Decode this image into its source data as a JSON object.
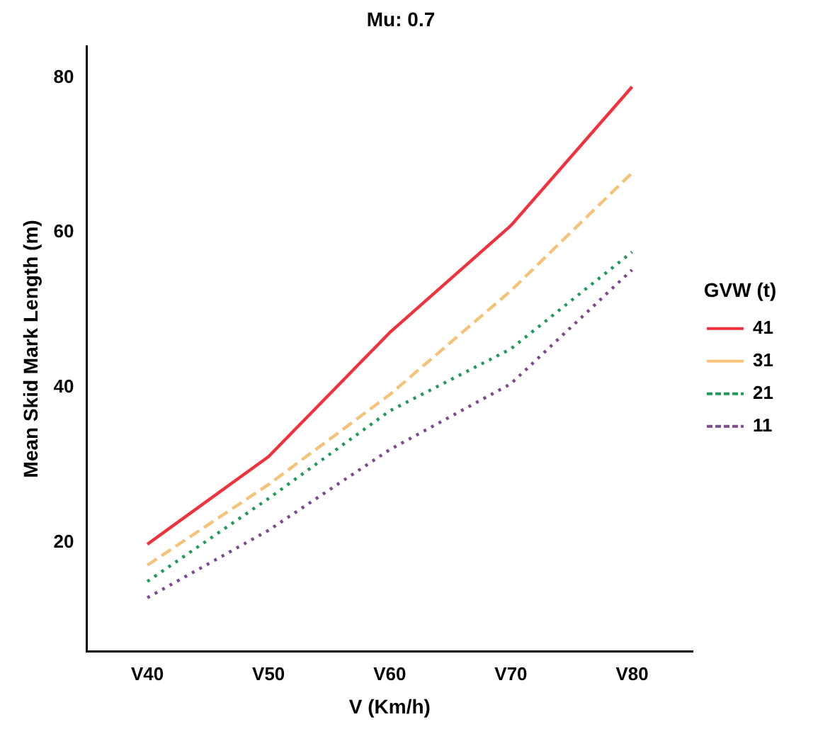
{
  "chart_data": {
    "type": "line",
    "title": "Mu: 0.7",
    "xlabel": "V (Km/h)",
    "ylabel": "Mean Skid Mark Length (m)",
    "legend_title": "GVW (t)",
    "legend": "right",
    "grid": false,
    "marker": "none",
    "categories": [
      "V40",
      "V50",
      "V60",
      "V70",
      "V80"
    ],
    "ylim": [
      6,
      84
    ],
    "yticks": [
      20,
      40,
      60,
      80
    ],
    "series": [
      {
        "name": "41",
        "color": "#f0323c",
        "line_style": "solid",
        "values": [
          19.8,
          31.1,
          47.1,
          60.9,
          78.8
        ]
      },
      {
        "name": "31",
        "color": "#f5c27a",
        "line_style": "dashed",
        "values": [
          17.1,
          27.5,
          39.1,
          52.5,
          67.7
        ]
      },
      {
        "name": "21",
        "color": "#1f9a5a",
        "line_style": "dotted",
        "values": [
          15,
          25.7,
          37,
          45,
          57.5
        ]
      },
      {
        "name": "11",
        "color": "#7d4a8f",
        "line_style": "dotted",
        "values": [
          12.9,
          21.6,
          32,
          40.5,
          55.2
        ]
      }
    ]
  }
}
